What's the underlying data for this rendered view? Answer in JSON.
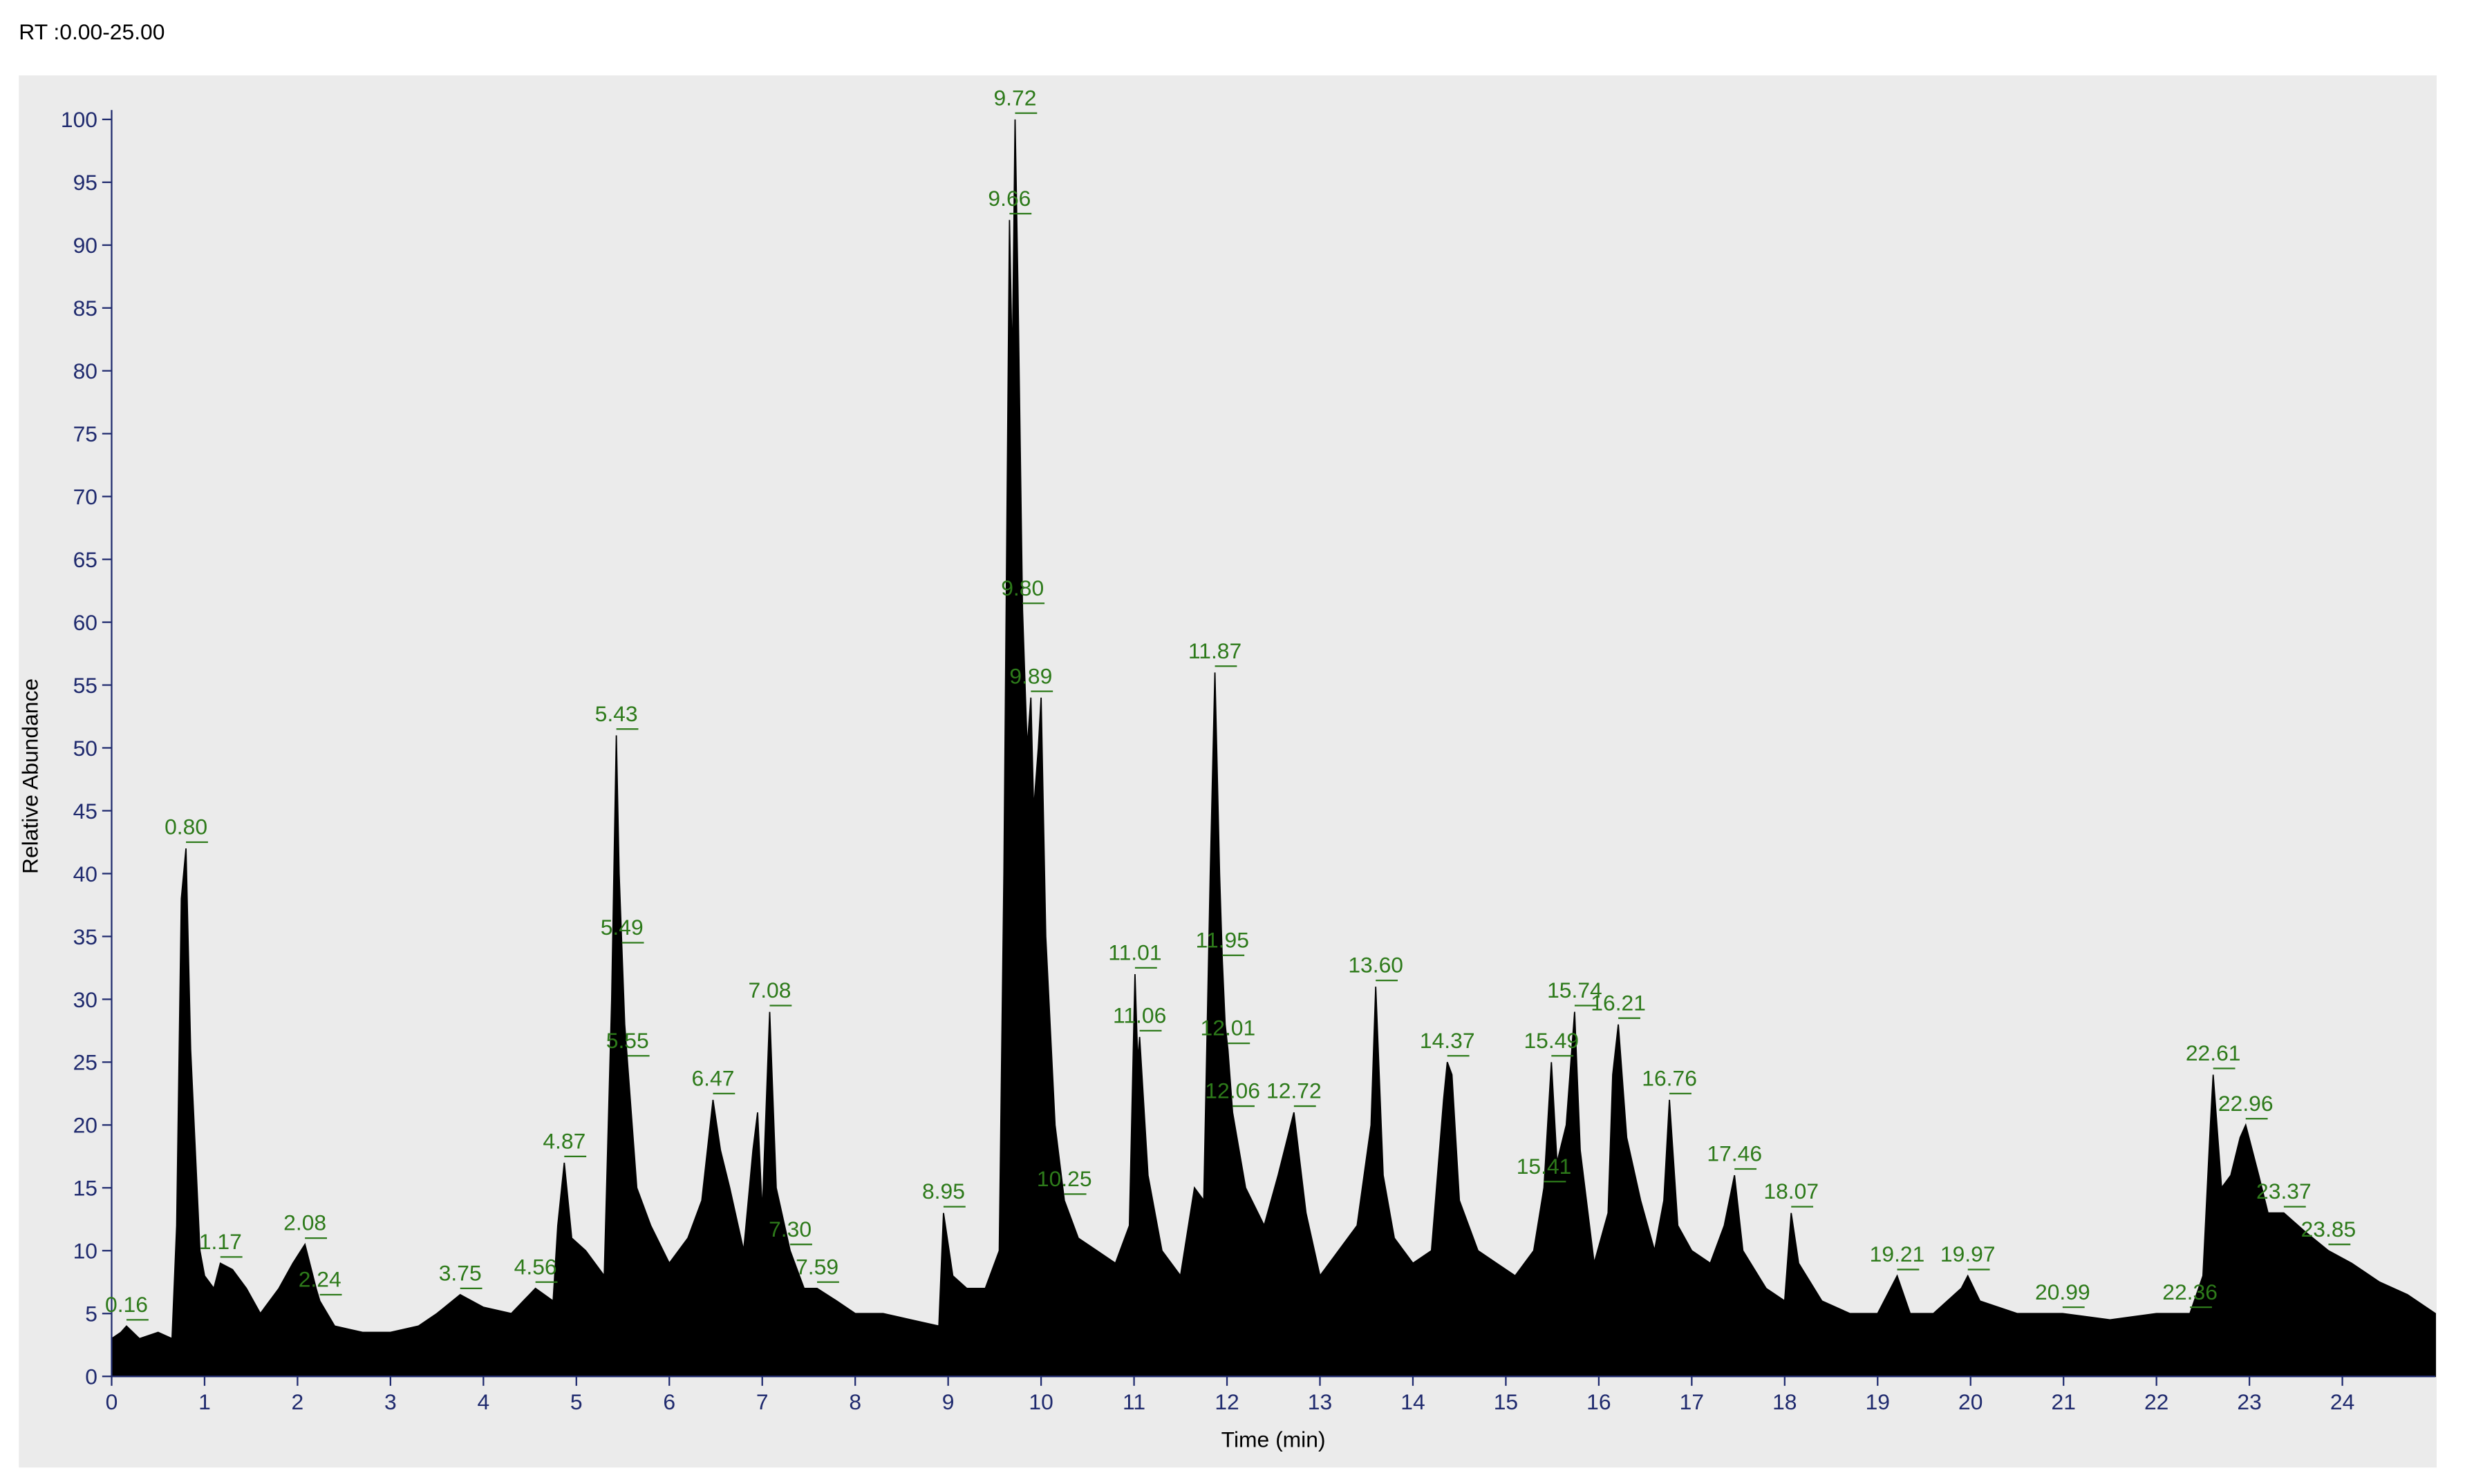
{
  "chart_data": {
    "type": "line",
    "title": "RT :0.00-25.00",
    "x_label": "Time (min)",
    "y_label": "Relative Abundance",
    "color": "#000000",
    "label_color": "#2d7a1a",
    "xlim": [
      0,
      25
    ],
    "ylim": [
      0,
      100
    ],
    "xticks": [
      0,
      1,
      2,
      3,
      4,
      5,
      6,
      7,
      8,
      9,
      10,
      11,
      12,
      13,
      14,
      15,
      16,
      17,
      18,
      19,
      20,
      21,
      22,
      23,
      24
    ],
    "yticks": [
      0,
      5,
      10,
      15,
      20,
      25,
      30,
      35,
      40,
      45,
      50,
      55,
      60,
      65,
      70,
      75,
      80,
      85,
      90,
      95,
      100
    ],
    "x": [
      0,
      0.1,
      0.16,
      0.3,
      0.5,
      0.65,
      0.7,
      0.75,
      0.8,
      0.85,
      0.9,
      0.95,
      1.0,
      1.1,
      1.17,
      1.3,
      1.45,
      1.6,
      1.8,
      1.95,
      2.08,
      2.2,
      2.24,
      2.4,
      2.7,
      3.0,
      3.3,
      3.5,
      3.75,
      4.0,
      4.3,
      4.56,
      4.75,
      4.8,
      4.87,
      4.95,
      5.1,
      5.3,
      5.38,
      5.43,
      5.46,
      5.49,
      5.52,
      5.55,
      5.65,
      5.8,
      6.0,
      6.2,
      6.35,
      6.47,
      6.55,
      6.65,
      6.8,
      6.9,
      6.95,
      7.0,
      7.08,
      7.15,
      7.3,
      7.45,
      7.59,
      7.8,
      8.0,
      8.3,
      8.6,
      8.9,
      8.95,
      9.05,
      9.2,
      9.4,
      9.55,
      9.6,
      9.66,
      9.69,
      9.72,
      9.75,
      9.8,
      9.85,
      9.89,
      9.92,
      9.97,
      10.0,
      10.05,
      10.15,
      10.25,
      10.4,
      10.6,
      10.8,
      10.95,
      11.01,
      11.04,
      11.06,
      11.15,
      11.3,
      11.5,
      11.65,
      11.75,
      11.82,
      11.87,
      11.92,
      11.95,
      11.98,
      12.01,
      12.04,
      12.06,
      12.2,
      12.4,
      12.55,
      12.72,
      12.85,
      13.0,
      13.2,
      13.4,
      13.55,
      13.6,
      13.68,
      13.8,
      14.0,
      14.2,
      14.33,
      14.37,
      14.42,
      14.5,
      14.7,
      14.9,
      15.1,
      15.3,
      15.41,
      15.45,
      15.49,
      15.55,
      15.65,
      15.74,
      15.8,
      15.95,
      16.1,
      16.15,
      16.21,
      16.3,
      16.45,
      16.6,
      16.7,
      16.76,
      16.85,
      17.0,
      17.2,
      17.35,
      17.46,
      17.55,
      17.8,
      18.0,
      18.07,
      18.15,
      18.4,
      18.7,
      19.0,
      19.21,
      19.35,
      19.6,
      19.9,
      19.97,
      20.1,
      20.5,
      20.99,
      21.5,
      22.0,
      22.36,
      22.5,
      22.58,
      22.61,
      22.7,
      22.8,
      22.9,
      22.96,
      23.1,
      23.2,
      23.37,
      23.6,
      23.85,
      24.1,
      24.4,
      24.7,
      25.0
    ],
    "values": [
      3,
      3.5,
      4,
      3,
      3.5,
      3,
      12,
      38,
      42,
      26,
      18,
      10,
      8,
      7,
      9,
      8.5,
      7,
      5,
      7,
      9,
      10.5,
      7,
      6,
      4,
      3.5,
      3.5,
      4,
      5,
      6.5,
      5.5,
      5,
      7,
      6,
      12,
      17,
      11,
      10,
      8,
      30,
      51,
      40,
      34,
      28,
      25,
      15,
      12,
      9,
      11,
      14,
      22,
      18,
      15,
      10,
      18,
      21,
      13,
      29,
      15,
      10,
      7,
      7,
      6,
      5,
      5,
      4.5,
      4,
      13,
      8,
      7,
      7,
      10,
      40,
      92,
      80,
      100,
      87,
      61,
      50,
      54,
      45,
      50,
      54,
      35,
      20,
      14,
      11,
      10,
      9,
      12,
      32,
      25,
      27,
      16,
      10,
      8,
      15,
      14,
      40,
      56,
      40,
      33,
      28,
      26,
      23,
      21,
      15,
      12,
      16,
      21,
      13,
      8,
      10,
      12,
      20,
      31,
      16,
      11,
      9,
      10,
      22,
      25,
      24,
      14,
      10,
      9,
      8,
      10,
      15,
      20,
      25,
      17,
      20,
      29,
      18,
      9,
      13,
      24,
      28,
      19,
      14,
      10,
      14,
      22,
      12,
      10,
      9,
      12,
      16,
      10,
      7,
      6,
      13,
      9,
      6,
      5,
      5,
      8,
      5,
      5,
      7,
      8,
      6,
      5,
      5,
      4.5,
      5,
      5,
      8,
      20,
      24,
      15,
      16,
      19,
      20,
      16,
      13,
      13,
      11.5,
      10,
      9,
      7.5,
      6.5,
      5
    ],
    "peaks": [
      {
        "x": 0.16,
        "label": "0.16",
        "y": 4
      },
      {
        "x": 0.8,
        "label": "0.80",
        "y": 42
      },
      {
        "x": 1.17,
        "label": "1.17",
        "y": 9
      },
      {
        "x": 2.08,
        "label": "2.08",
        "y": 10.5
      },
      {
        "x": 2.24,
        "label": "2.24",
        "y": 6
      },
      {
        "x": 3.75,
        "label": "3.75",
        "y": 6.5
      },
      {
        "x": 4.56,
        "label": "4.56",
        "y": 7
      },
      {
        "x": 4.87,
        "label": "4.87",
        "y": 17
      },
      {
        "x": 5.43,
        "label": "5.43",
        "y": 51
      },
      {
        "x": 5.49,
        "label": "5.49",
        "y": 34
      },
      {
        "x": 5.55,
        "label": "5.55",
        "y": 25
      },
      {
        "x": 6.47,
        "label": "6.47",
        "y": 22
      },
      {
        "x": 7.08,
        "label": "7.08",
        "y": 29
      },
      {
        "x": 7.3,
        "label": "7.30",
        "y": 10
      },
      {
        "x": 7.59,
        "label": "7.59",
        "y": 7
      },
      {
        "x": 8.95,
        "label": "8.95",
        "y": 13
      },
      {
        "x": 9.66,
        "label": "9.66",
        "y": 92
      },
      {
        "x": 9.72,
        "label": "9.72",
        "y": 100
      },
      {
        "x": 9.8,
        "label": "9.80",
        "y": 61
      },
      {
        "x": 9.89,
        "label": "9.89",
        "y": 54
      },
      {
        "x": 10.25,
        "label": "10.25",
        "y": 14
      },
      {
        "x": 11.01,
        "label": "11.01",
        "y": 32
      },
      {
        "x": 11.06,
        "label": "11.06",
        "y": 27
      },
      {
        "x": 11.87,
        "label": "11.87",
        "y": 56
      },
      {
        "x": 11.95,
        "label": "11.95",
        "y": 33
      },
      {
        "x": 12.01,
        "label": "12.01",
        "y": 26
      },
      {
        "x": 12.06,
        "label": "12.06",
        "y": 21
      },
      {
        "x": 12.72,
        "label": "12.72",
        "y": 21
      },
      {
        "x": 13.6,
        "label": "13.60",
        "y": 31
      },
      {
        "x": 14.37,
        "label": "14.37",
        "y": 25
      },
      {
        "x": 15.41,
        "label": "15.41",
        "y": 15
      },
      {
        "x": 15.49,
        "label": "15.49",
        "y": 25
      },
      {
        "x": 15.74,
        "label": "15.74",
        "y": 29
      },
      {
        "x": 16.21,
        "label": "16.21",
        "y": 28
      },
      {
        "x": 16.76,
        "label": "16.76",
        "y": 22
      },
      {
        "x": 17.46,
        "label": "17.46",
        "y": 16
      },
      {
        "x": 18.07,
        "label": "18.07",
        "y": 13
      },
      {
        "x": 19.21,
        "label": "19.21",
        "y": 8
      },
      {
        "x": 19.97,
        "label": "19.97",
        "y": 8
      },
      {
        "x": 20.99,
        "label": "20.99",
        "y": 5
      },
      {
        "x": 22.36,
        "label": "22.36",
        "y": 5
      },
      {
        "x": 22.61,
        "label": "22.61",
        "y": 24
      },
      {
        "x": 22.96,
        "label": "22.96",
        "y": 20
      },
      {
        "x": 23.37,
        "label": "23.37",
        "y": 13
      },
      {
        "x": 23.85,
        "label": "23.85",
        "y": 10
      }
    ]
  }
}
